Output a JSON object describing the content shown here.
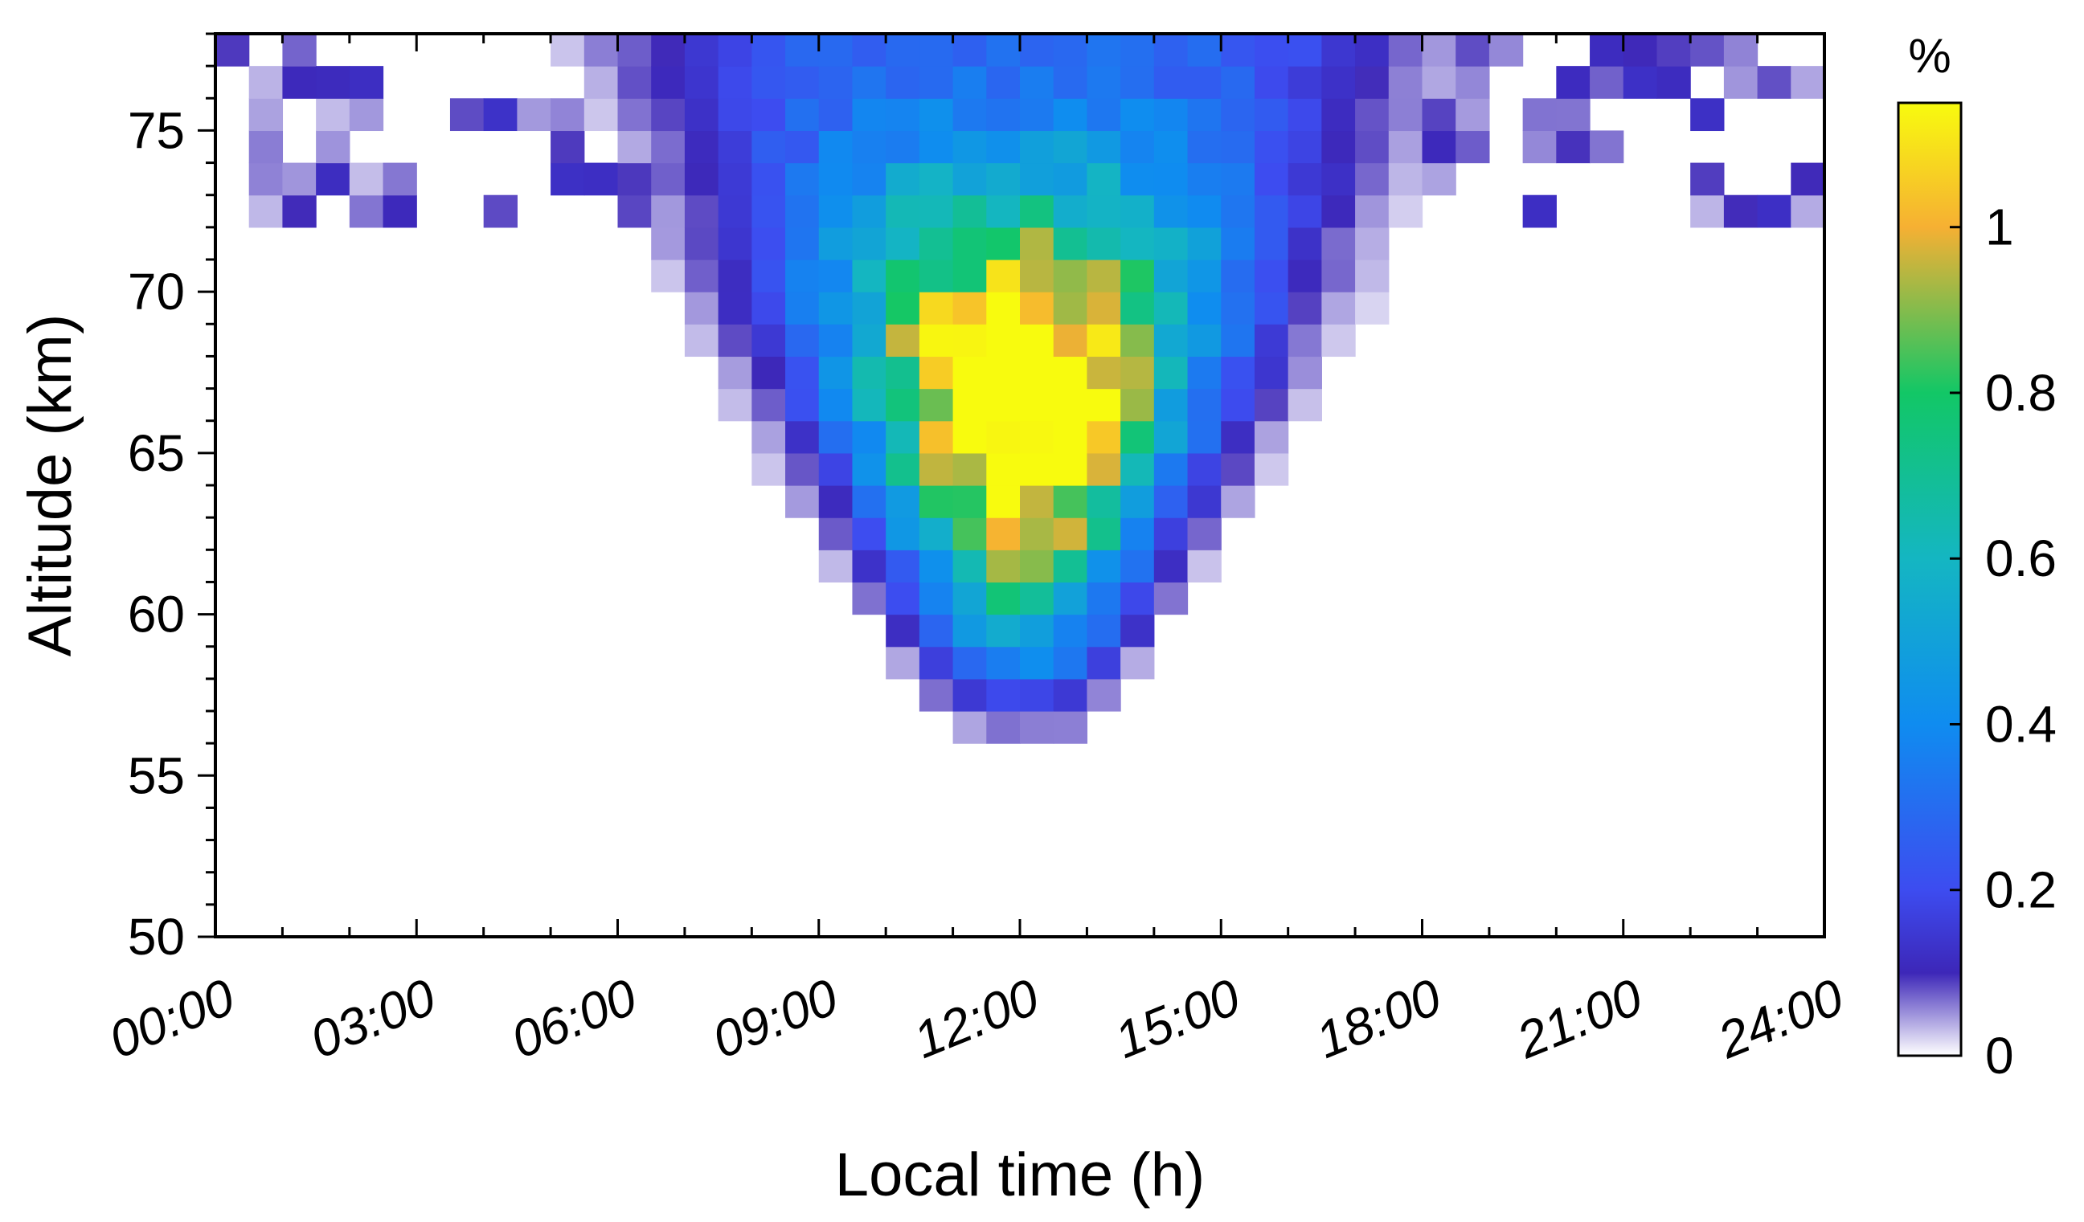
{
  "chart_data": {
    "type": "heatmap",
    "title": "",
    "xlabel": "Local time (h)",
    "ylabel": "Altitude (km)",
    "xlim": [
      0,
      24
    ],
    "ylim": [
      50,
      78
    ],
    "x_bin_hours": 0.5,
    "y_bin_km": 1,
    "x_tick_values": [
      0,
      3,
      6,
      9,
      12,
      15,
      18,
      21,
      24
    ],
    "x_tick_labels": [
      "00:00",
      "03:00",
      "06:00",
      "09:00",
      "12:00",
      "15:00",
      "18:00",
      "21:00",
      "24:00"
    ],
    "y_tick_values": [
      50,
      55,
      60,
      65,
      70,
      75
    ],
    "y_tick_labels": [
      "50",
      "55",
      "60",
      "65",
      "70",
      "75"
    ],
    "grid": false,
    "colorbar": {
      "label": "%",
      "min": 0,
      "max": 1.15,
      "tick_values": [
        0,
        0.2,
        0.4,
        0.6,
        0.8,
        1
      ],
      "tick_labels": [
        "0",
        "0.2",
        "0.4",
        "0.6",
        "0.8",
        "1"
      ],
      "colormap_stops": [
        {
          "v": 0.0,
          "color": "#ffffff"
        },
        {
          "v": 0.1,
          "color": "#3d27b8"
        },
        {
          "v": 0.2,
          "color": "#3d4cf0"
        },
        {
          "v": 0.4,
          "color": "#0f8cf0"
        },
        {
          "v": 0.6,
          "color": "#14b6c2"
        },
        {
          "v": 0.8,
          "color": "#12c766"
        },
        {
          "v": 1.0,
          "color": "#f6b033"
        },
        {
          "v": 1.15,
          "color": "#f8fb0e"
        }
      ]
    },
    "model": {
      "center_local_time_h": 12.0,
      "center_altitude_km": 66.5,
      "peak_percent": 1.1
    }
  }
}
